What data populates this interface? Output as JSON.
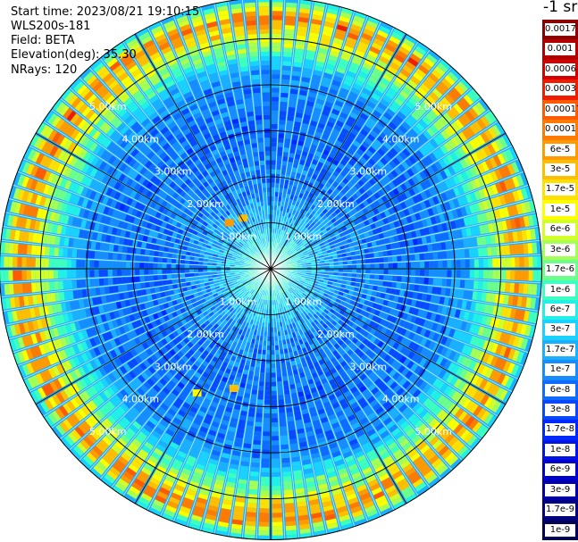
{
  "info": {
    "start_time": "Start time: 2023/08/21 19:10:15",
    "device": "WLS200s-181",
    "field": "Field: BETA",
    "elevation": "Elevation(deg): 35.30",
    "nrays": "NRays: 120"
  },
  "chart_data": {
    "type": "heatmap",
    "projection": "polar",
    "nrays": 120,
    "range_rings_km": [
      1.0,
      2.0,
      3.0,
      4.0,
      5.0
    ],
    "ring_labels": [
      "1.00km",
      "2.00km",
      "3.00km",
      "4.00km",
      "5.00km"
    ],
    "colorbar": {
      "title": "-1 sr",
      "levels": [
        "0.0017",
        "0.001",
        "0.0006",
        "0.0003",
        "0.00017",
        "0.0001",
        "6e-5",
        "3e-5",
        "1.7e-5",
        "1e-5",
        "6e-6",
        "3e-6",
        "1.7e-6",
        "1e-6",
        "6e-7",
        "3e-7",
        "1.7e-7",
        "1e-7",
        "6e-8",
        "3e-8",
        "1.7e-8",
        "1e-8",
        "6e-9",
        "3e-9",
        "1.7e-9",
        "1e-9"
      ],
      "colors": [
        "#8b0000",
        "#b00000",
        "#d40000",
        "#f01c00",
        "#ff5a00",
        "#ff7a00",
        "#ff9a00",
        "#ffbe00",
        "#ffe000",
        "#fcff00",
        "#d2ff2a",
        "#a6ff55",
        "#6cff8c",
        "#3dffbf",
        "#22f0e6",
        "#1ad2ff",
        "#1ab0ff",
        "#168cff",
        "#0f6aff",
        "#0a48ff",
        "#0028ff",
        "#0014e6",
        "#0000cc",
        "#0000a6",
        "#00007e",
        "#000058"
      ]
    },
    "profile_by_range_km": [
      {
        "range_km": 0.1,
        "value": "1.7e-6"
      },
      {
        "range_km": 0.8,
        "value": "3e-7"
      },
      {
        "range_km": 1.5,
        "value": "1e-7"
      },
      {
        "range_km": 2.5,
        "value": "6e-8"
      },
      {
        "range_km": 3.5,
        "value": "6e-8"
      },
      {
        "range_km": 4.2,
        "value": "1e-7"
      },
      {
        "range_km": 5.1,
        "value": "1e-5"
      },
      {
        "range_km": 5.5,
        "value": "0.0001"
      },
      {
        "range_km": 5.9,
        "value": "1.7e-7"
      }
    ],
    "hotspots": [
      {
        "x_km": -0.9,
        "y_km": 1.0,
        "value": "6e-5"
      },
      {
        "x_km": -0.6,
        "y_km": 1.1,
        "value": "3e-5"
      },
      {
        "x_km": -1.6,
        "y_km": -2.7,
        "value": "1e-5"
      },
      {
        "x_km": -0.8,
        "y_km": -2.6,
        "value": "3e-5"
      }
    ]
  }
}
